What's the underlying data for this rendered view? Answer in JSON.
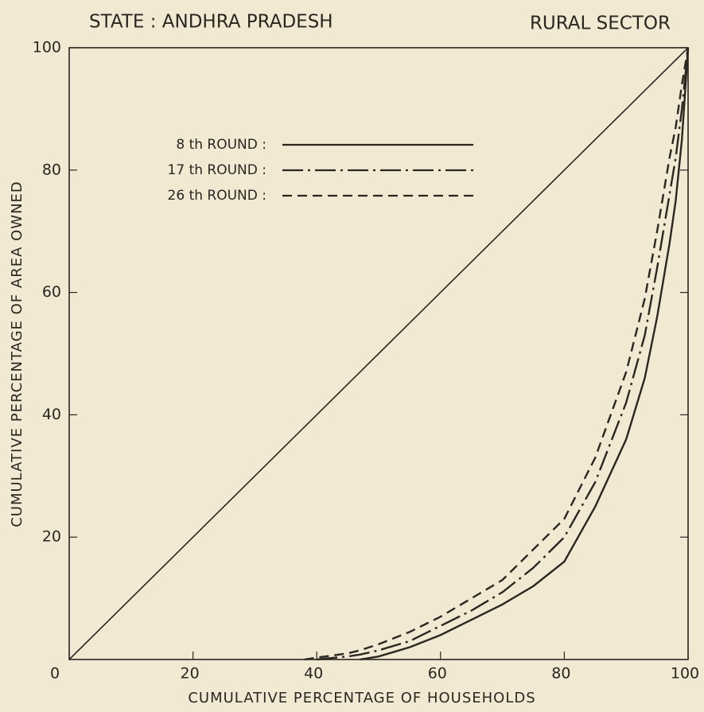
{
  "chart_data": {
    "type": "line",
    "title": "STATE : ANDHRA PRADESH",
    "subtitle": "RURAL SECTOR",
    "xlabel": "CUMULATIVE PERCENTAGE OF HOUSEHOLDS",
    "ylabel": "CUMULATIVE PERCENTAGE OF AREA OWNED",
    "x": [
      0,
      38,
      40,
      45,
      47,
      50,
      55,
      60,
      65,
      70,
      75,
      80,
      85,
      90,
      93,
      95,
      97,
      98,
      99,
      100
    ],
    "series": [
      {
        "color": "#2a2620",
        "dash": "solid",
        "values": [
          0,
          38,
          40,
          45,
          47,
          50,
          55,
          60,
          65,
          70,
          75,
          80,
          85,
          90,
          93,
          95,
          97,
          98,
          99,
          100
        ]
      },
      {
        "name": "8 th ROUND :",
        "color": "#2a2620",
        "dash": "solid",
        "values": [
          null,
          null,
          null,
          null,
          0,
          0.5,
          2,
          4,
          6.5,
          9,
          12,
          16,
          25,
          36,
          46,
          56,
          68,
          75,
          85,
          100
        ]
      },
      {
        "name": "17 th ROUND :",
        "color": "#2a2620",
        "dash": "dashdot",
        "values": [
          null,
          null,
          0,
          0.5,
          0.8,
          1.5,
          3,
          5.5,
          8,
          11,
          15,
          20,
          29,
          42,
          53,
          64,
          76,
          82,
          90,
          100
        ]
      },
      {
        "name": "26 th ROUND :",
        "color": "#2a2620",
        "dash": "dashed",
        "values": [
          null,
          0,
          0.3,
          1,
          1.5,
          2.5,
          4.5,
          7,
          10,
          13,
          18,
          23,
          33,
          47,
          59,
          70,
          82,
          87,
          94,
          100
        ]
      }
    ],
    "xlim": [
      0,
      100
    ],
    "ylim": [
      0,
      100
    ],
    "xticks": [
      0,
      20,
      40,
      60,
      80,
      100
    ],
    "yticks": [
      20,
      40,
      60,
      80,
      100
    ],
    "grid": false,
    "legend": "upper left"
  }
}
